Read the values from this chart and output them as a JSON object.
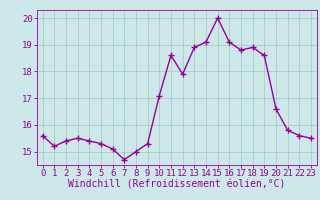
{
  "x": [
    0,
    1,
    2,
    3,
    4,
    5,
    6,
    7,
    8,
    9,
    10,
    11,
    12,
    13,
    14,
    15,
    16,
    17,
    18,
    19,
    20,
    21,
    22,
    23
  ],
  "y": [
    15.6,
    15.2,
    15.4,
    15.5,
    15.4,
    15.3,
    15.1,
    14.7,
    15.0,
    15.3,
    17.1,
    18.6,
    17.9,
    18.9,
    19.1,
    20.0,
    19.1,
    18.8,
    18.9,
    18.6,
    16.6,
    15.8,
    15.6,
    15.5
  ],
  "line_color": "#990099",
  "marker_color": "#990099",
  "bg_color": "#cce8e8",
  "grid_color": "#aacccc",
  "xlabel": "Windchill (Refroidissement éolien,°C)",
  "xlim": [
    -0.5,
    23.5
  ],
  "ylim": [
    14.5,
    20.3
  ],
  "yticks": [
    15,
    16,
    17,
    18,
    19,
    20
  ],
  "xticks": [
    0,
    1,
    2,
    3,
    4,
    5,
    6,
    7,
    8,
    9,
    10,
    11,
    12,
    13,
    14,
    15,
    16,
    17,
    18,
    19,
    20,
    21,
    22,
    23
  ],
  "xlabel_fontsize": 7,
  "tick_fontsize": 6.5,
  "line_width": 1.0,
  "marker_size": 2.5
}
